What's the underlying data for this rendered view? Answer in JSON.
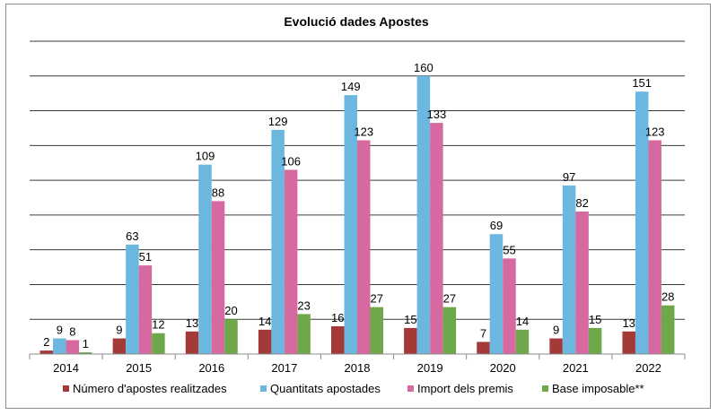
{
  "chart_data": {
    "type": "bar",
    "title": "Evolució dades Apostes",
    "xlabel": "",
    "ylabel": "",
    "categories": [
      "2014",
      "2015",
      "2016",
      "2017",
      "2018",
      "2019",
      "2020",
      "2021",
      "2022"
    ],
    "series": [
      {
        "name": "Número d'apostes realitzades",
        "color": "#a33a37",
        "values": [
          2,
          9,
          13,
          14,
          16,
          15,
          7,
          9,
          13
        ]
      },
      {
        "name": "Quantitats apostades",
        "color": "#6bb7df",
        "values": [
          9,
          63,
          109,
          129,
          149,
          160,
          69,
          97,
          151
        ]
      },
      {
        "name": "Import dels premis",
        "color": "#d569a0",
        "values": [
          8,
          51,
          88,
          106,
          123,
          133,
          55,
          82,
          123
        ]
      },
      {
        "name": "Base imposable**",
        "color": "#6fa84a",
        "values": [
          1,
          12,
          20,
          23,
          27,
          27,
          14,
          15,
          28
        ]
      }
    ],
    "ylim": [
      0,
      180
    ],
    "grid": true,
    "legend": "bottom"
  }
}
